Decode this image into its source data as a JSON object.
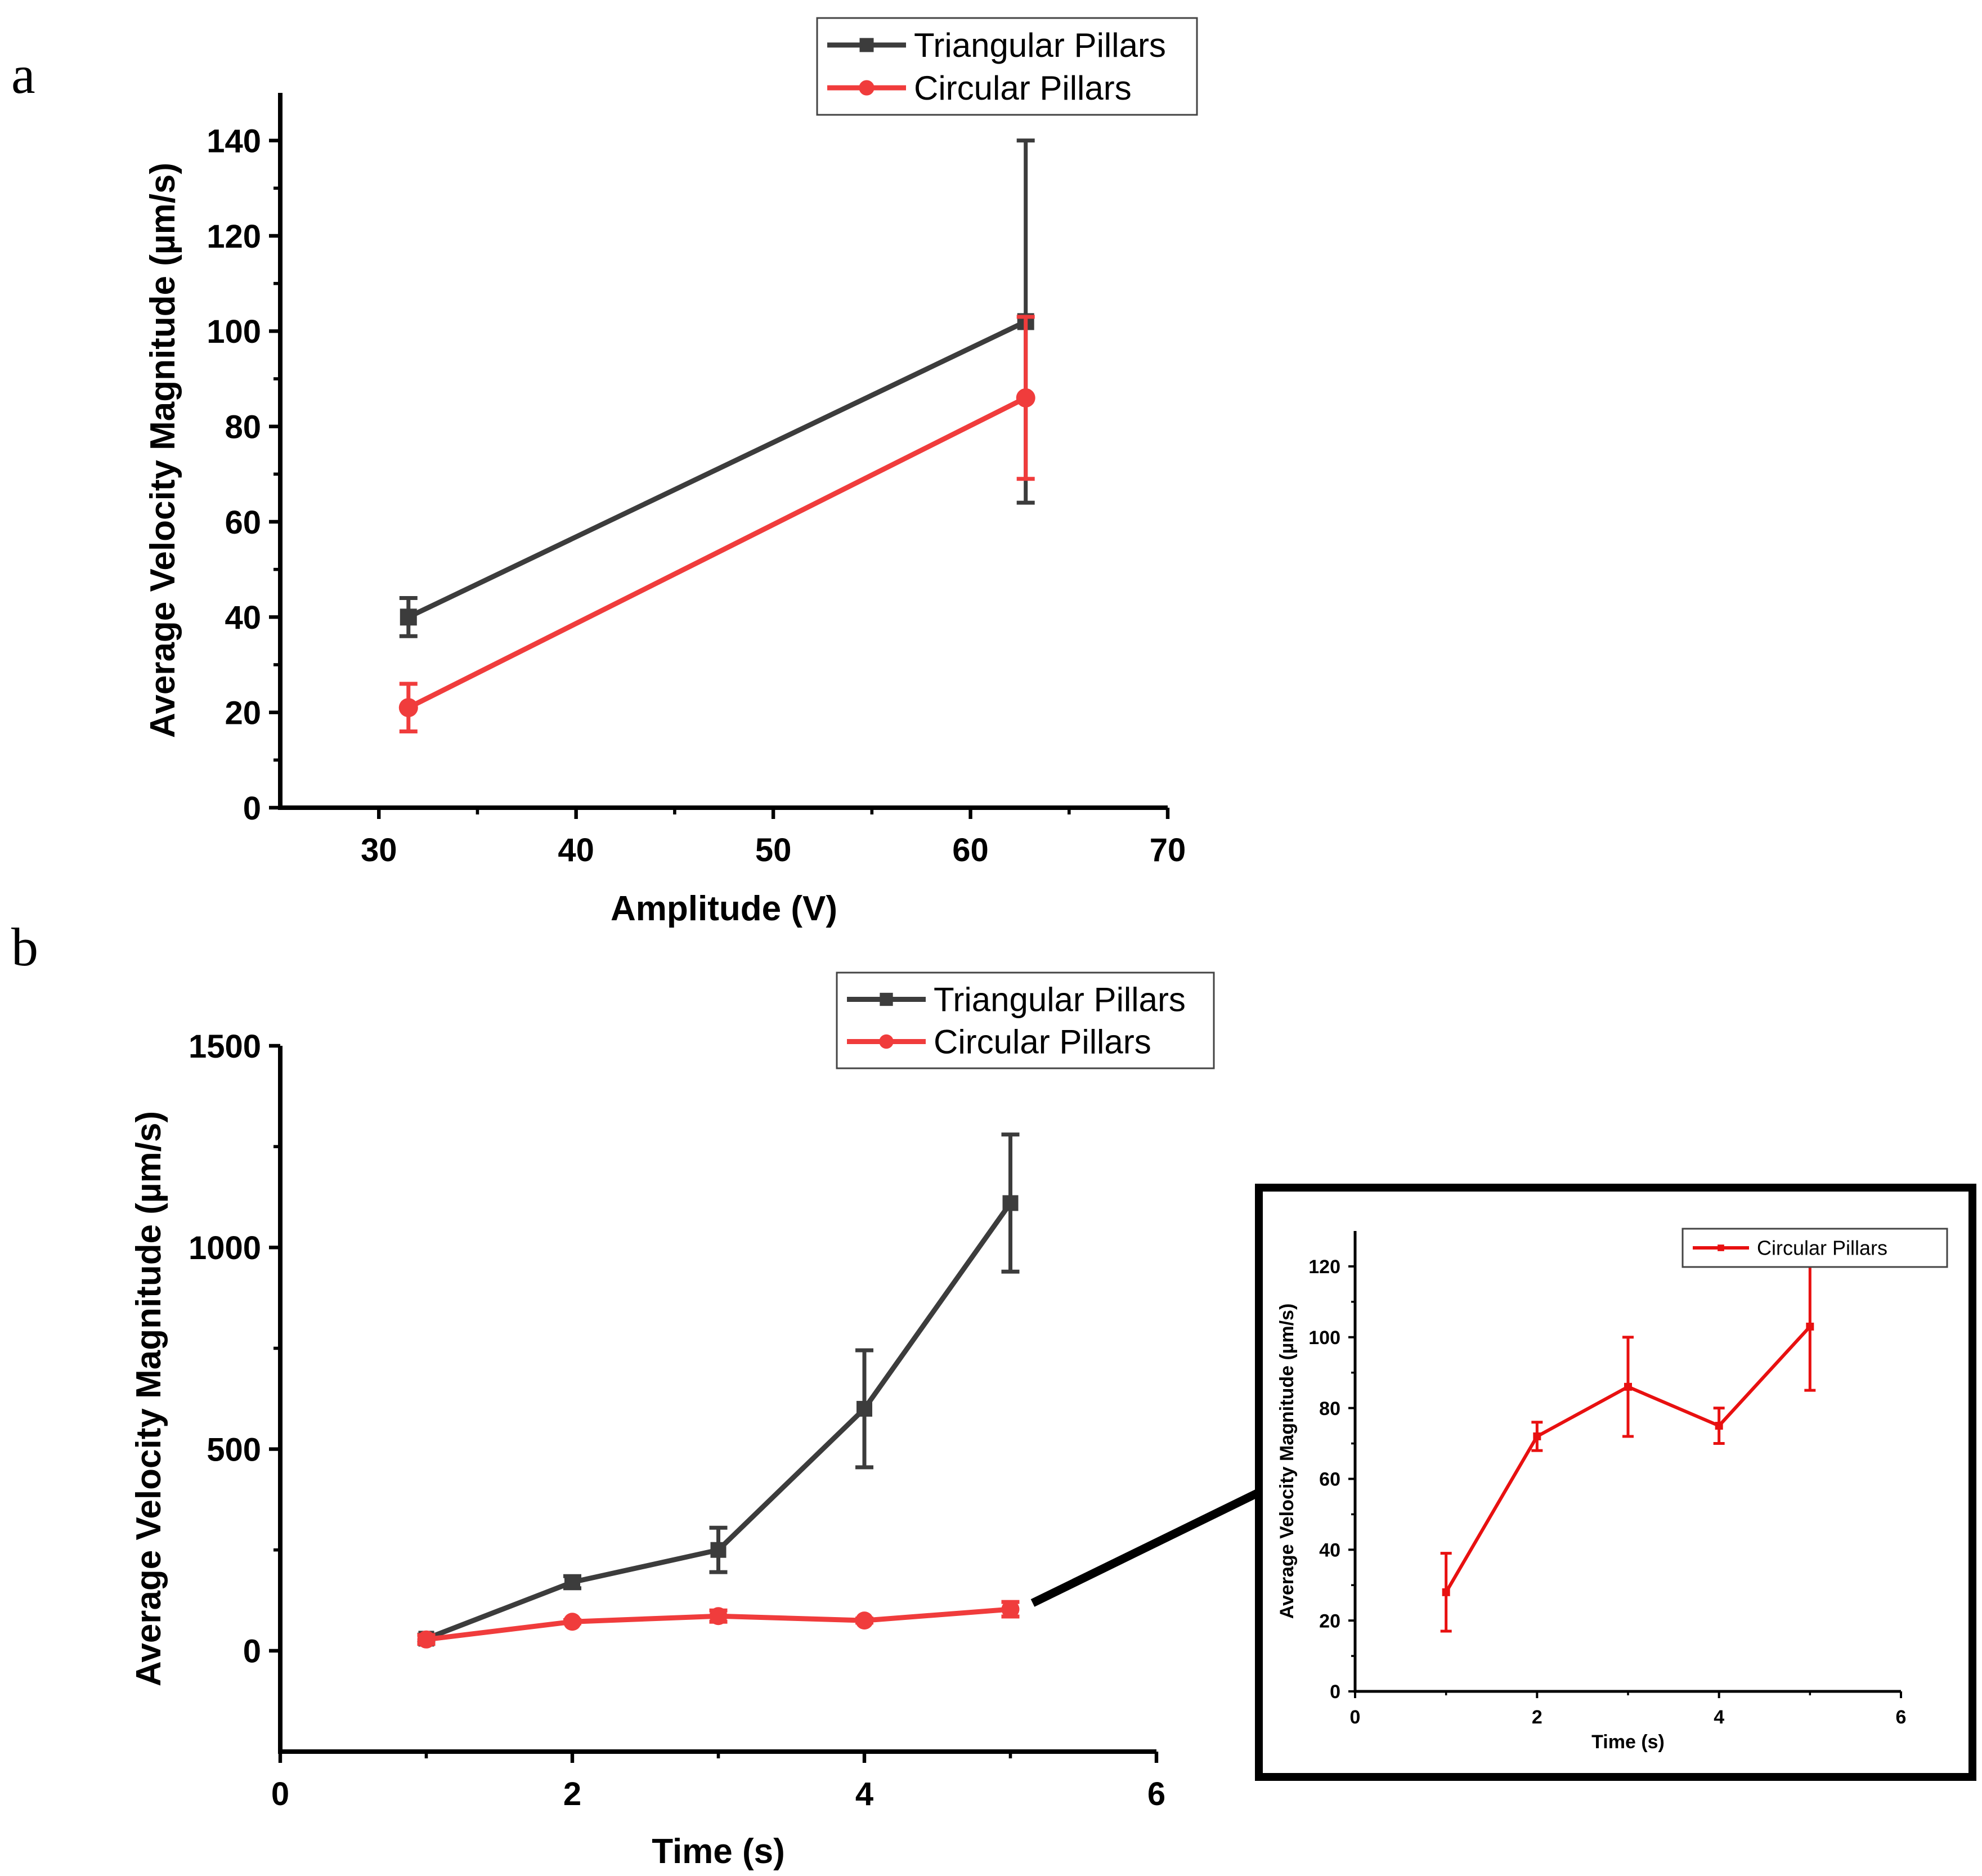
{
  "figure": {
    "panel_labels": [
      "a",
      "b"
    ]
  },
  "colors": {
    "triangular": "#3c3c3c",
    "circular": "#f03c3c",
    "inset_circular": "#e81010",
    "axis": "#000000",
    "connector": "#000000"
  },
  "chart_data": [
    {
      "id": "a",
      "type": "line",
      "title": "",
      "xlabel": "Amplitude (V)",
      "ylabel": "Average Velocity Magnitude (µm/s)",
      "xlim": [
        25,
        70
      ],
      "ylim": [
        0,
        150
      ],
      "xticks": [
        30,
        40,
        50,
        60,
        70
      ],
      "yticks": [
        0,
        20,
        40,
        60,
        80,
        100,
        120,
        140
      ],
      "legend": "top-center",
      "grid": false,
      "series": [
        {
          "name": "Triangular Pillars",
          "marker": "square",
          "color_key": "triangular",
          "x": [
            31.5,
            62.8
          ],
          "y": [
            40,
            102
          ],
          "err": [
            4,
            38
          ]
        },
        {
          "name": "Circular Pillars",
          "marker": "circle",
          "color_key": "circular",
          "x": [
            31.5,
            62.8
          ],
          "y": [
            21,
            86
          ],
          "err": [
            5,
            17
          ]
        }
      ]
    },
    {
      "id": "b",
      "type": "line",
      "title": "",
      "xlabel": "Time (s)",
      "ylabel": "Average Velocity Magnitude (µm/s)",
      "xlim": [
        0,
        6
      ],
      "ylim": [
        -250,
        1500
      ],
      "xticks": [
        0,
        2,
        4,
        6
      ],
      "yticks": [
        0,
        500,
        1000,
        1500
      ],
      "legend": "top-right",
      "grid": false,
      "series": [
        {
          "name": "Triangular Pillars",
          "marker": "square",
          "color_key": "triangular",
          "x": [
            1,
            2,
            3,
            4,
            5
          ],
          "y": [
            30,
            170,
            250,
            600,
            1110
          ],
          "err": [
            10,
            15,
            55,
            145,
            170
          ]
        },
        {
          "name": "Circular Pillars",
          "marker": "circle",
          "color_key": "circular",
          "x": [
            1,
            2,
            3,
            4,
            5
          ],
          "y": [
            28,
            72,
            86,
            75,
            103
          ],
          "err": [
            11,
            4,
            14,
            5,
            18
          ]
        }
      ]
    },
    {
      "id": "b-inset",
      "type": "line",
      "title": "",
      "xlabel": "Time (s)",
      "ylabel": "Average Velocity Magnitude (µm/s)",
      "xlim": [
        0,
        6
      ],
      "ylim": [
        0,
        130
      ],
      "xticks": [
        0,
        2,
        4,
        6
      ],
      "yticks": [
        0,
        20,
        40,
        60,
        80,
        100,
        120
      ],
      "legend": "top-right",
      "grid": false,
      "series": [
        {
          "name": "Circular Pillars",
          "marker": "square",
          "color_key": "inset_circular",
          "x": [
            1,
            2,
            3,
            4,
            5
          ],
          "y": [
            28,
            72,
            86,
            75,
            103
          ],
          "err": [
            11,
            4,
            14,
            5,
            18
          ]
        }
      ]
    }
  ]
}
